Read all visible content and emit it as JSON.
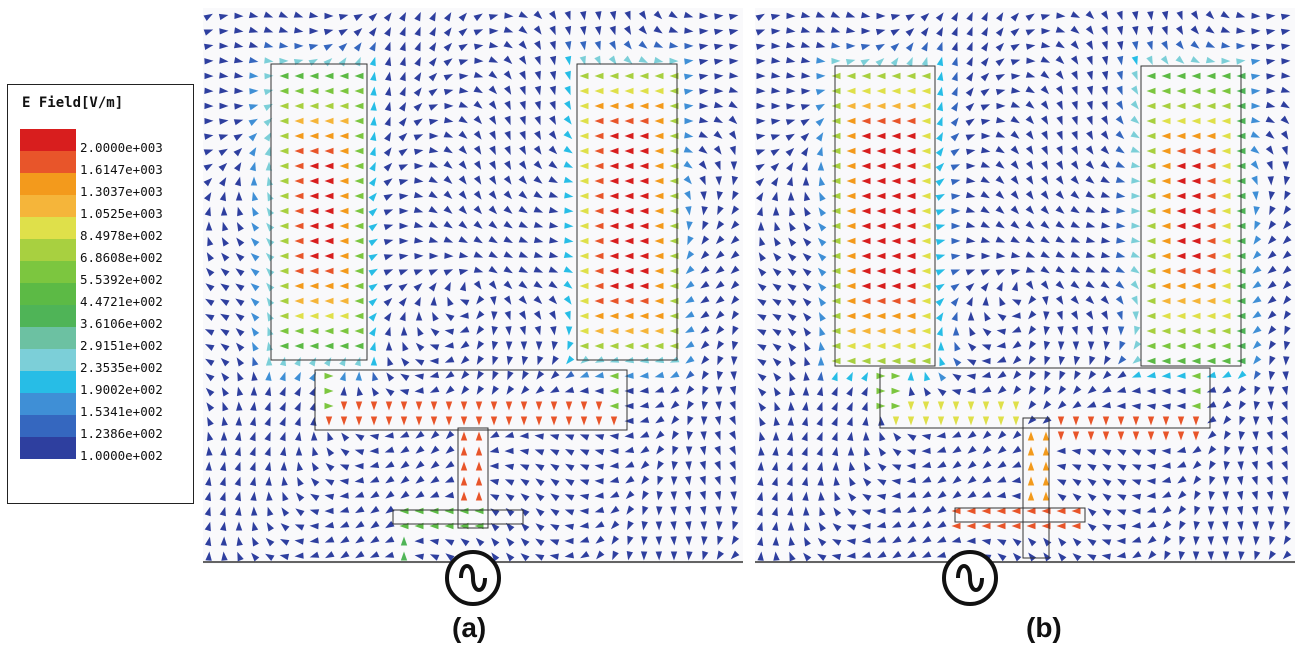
{
  "legend": {
    "title": "E Field[V/m]",
    "levels": [
      {
        "value": "2.0000e+003",
        "color": "#d81e1e"
      },
      {
        "value": "1.6147e+003",
        "color": "#e8552a"
      },
      {
        "value": "1.3037e+003",
        "color": "#f39a1c"
      },
      {
        "value": "1.0525e+003",
        "color": "#f5b53a"
      },
      {
        "value": "8.4978e+002",
        "color": "#dfe04a"
      },
      {
        "value": "6.8608e+002",
        "color": "#a8d040"
      },
      {
        "value": "5.5392e+002",
        "color": "#7cc63f"
      },
      {
        "value": "4.4721e+002",
        "color": "#5cba45"
      },
      {
        "value": "3.6106e+002",
        "color": "#4fb457"
      },
      {
        "value": "2.9151e+002",
        "color": "#6cc1a2"
      },
      {
        "value": "2.3535e+002",
        "color": "#7ccfd8"
      },
      {
        "value": "1.9002e+002",
        "color": "#27bde6"
      },
      {
        "value": "1.5341e+002",
        "color": "#3f8fd6"
      },
      {
        "value": "1.2386e+002",
        "color": "#3567bf"
      },
      {
        "value": "1.0000e+002",
        "color": "#2e3f9f"
      }
    ]
  },
  "panels": [
    {
      "caption": "(a)"
    },
    {
      "caption": "(b)"
    }
  ],
  "colors": {
    "low": "#2e3f9f",
    "mid": "#27bde6",
    "high": "#d81e1e"
  }
}
